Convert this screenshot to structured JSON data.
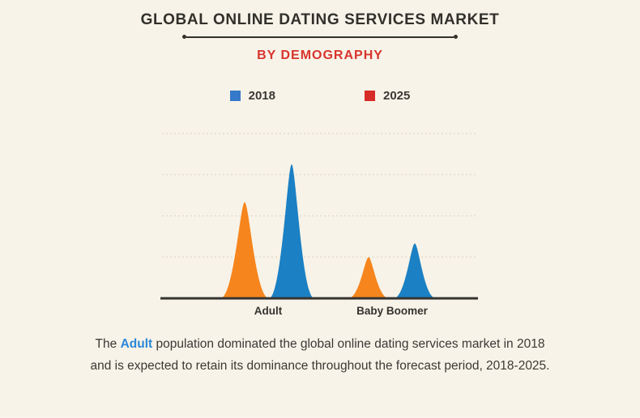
{
  "header": {
    "title": "GLOBAL ONLINE DATING SERVICES MARKET",
    "subtitle": "BY DEMOGRAPHY"
  },
  "legend": {
    "items": [
      {
        "label": "2018",
        "color": "#3579c8"
      },
      {
        "label": "2025",
        "color": "#d62b27"
      }
    ]
  },
  "chart_data": {
    "type": "area",
    "subtype": "bell-spike comparison",
    "categories": [
      "Adult",
      "Baby Boomer"
    ],
    "series": [
      {
        "name": "2018",
        "color": "#f6851d",
        "values": [
          2.33,
          1.0
        ]
      },
      {
        "name": "2025",
        "color": "#1b80c4",
        "values": [
          3.25,
          1.33
        ]
      }
    ],
    "title": "GLOBAL ONLINE DATING SERVICES MARKET BY DEMOGRAPHY",
    "xlabel": "",
    "ylabel": "",
    "ylim": [
      0,
      4
    ],
    "grid": "horizontal dashed",
    "legend_position": "top"
  },
  "caption": {
    "line1_prefix": "The ",
    "line1_highlight": "Adult",
    "line1_rest": " population dominated the global online dating services market in 2018",
    "line2": "and is expected to retain its dominance throughout the forecast period, 2018-2025."
  },
  "colors": {
    "background": "#f7f3e8",
    "title_text": "#32302b",
    "subtitle_red": "#d8342e",
    "spike_orange": "#f6851d",
    "spike_blue": "#1b80c4",
    "legend_blue": "#3579c8",
    "legend_red": "#d62b27",
    "gridline": "#d9d3c2",
    "axis": "#35332f",
    "caption_text": "#3b3935",
    "caption_highlight": "#2d87d8"
  }
}
